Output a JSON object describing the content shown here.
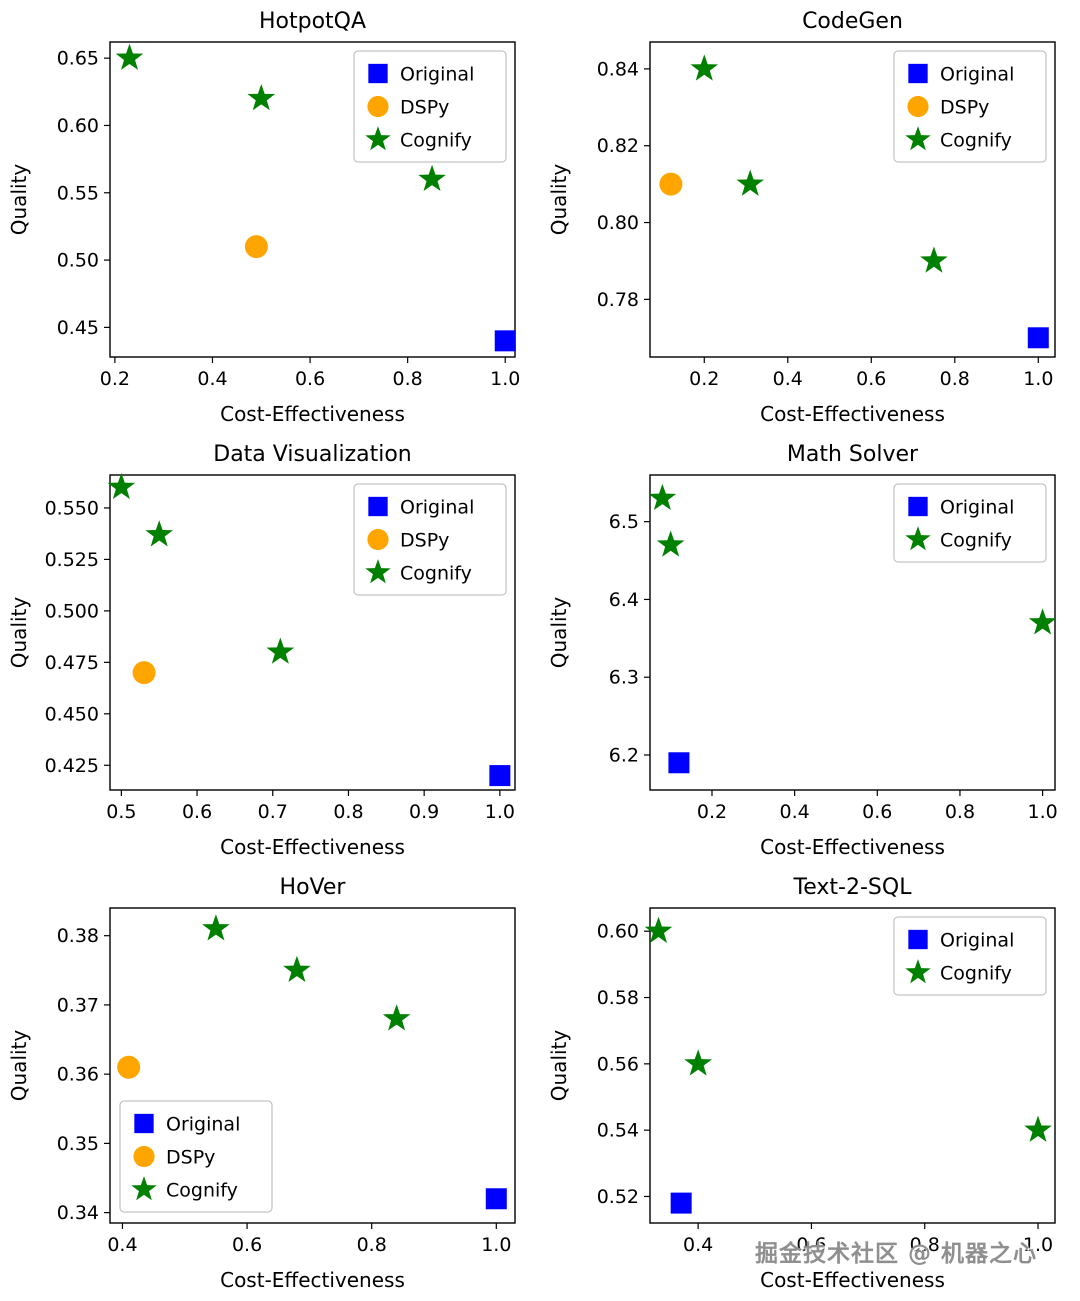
{
  "watermark": {
    "text": "掘金技术社区 @ 机器之心",
    "color": "#8f8f8f"
  },
  "colors": {
    "original": "#0000ff",
    "dspy": "#ffa500",
    "cognify": "#008000",
    "spine": "#000000",
    "legend_border": "#b5b5b5"
  },
  "chart_data": [
    {
      "id": "hotpotqa",
      "type": "scatter",
      "title": "HotpotQA",
      "xlabel": "Cost-Effectiveness",
      "ylabel": "Quality",
      "xlim": [
        0.19,
        1.02
      ],
      "ylim": [
        0.428,
        0.662
      ],
      "xticks": [
        0.2,
        0.4,
        0.6,
        0.8,
        1.0
      ],
      "xtick_labels": [
        "0.2",
        "0.4",
        "0.6",
        "0.8",
        "1.0"
      ],
      "yticks": [
        0.45,
        0.5,
        0.55,
        0.6,
        0.65
      ],
      "ytick_labels": [
        "0.45",
        "0.50",
        "0.55",
        "0.60",
        "0.65"
      ],
      "grid": false,
      "legend_pos": "top-right",
      "series": [
        {
          "name": "Original",
          "marker": "square",
          "color": "#0000ff",
          "points": [
            [
              1.0,
              0.44
            ]
          ]
        },
        {
          "name": "DSPy",
          "marker": "circle",
          "color": "#ffa500",
          "points": [
            [
              0.49,
              0.51
            ]
          ]
        },
        {
          "name": "Cognify",
          "marker": "star",
          "color": "#008000",
          "points": [
            [
              0.23,
              0.65
            ],
            [
              0.5,
              0.62
            ],
            [
              0.85,
              0.56
            ]
          ]
        }
      ]
    },
    {
      "id": "codegen",
      "type": "scatter",
      "title": "CodeGen",
      "xlabel": "Cost-Effectiveness",
      "ylabel": "Quality",
      "xlim": [
        0.07,
        1.04
      ],
      "ylim": [
        0.765,
        0.847
      ],
      "xticks": [
        0.2,
        0.4,
        0.6,
        0.8,
        1.0
      ],
      "xtick_labels": [
        "0.2",
        "0.4",
        "0.6",
        "0.8",
        "1.0"
      ],
      "yticks": [
        0.78,
        0.8,
        0.82,
        0.84
      ],
      "ytick_labels": [
        "0.78",
        "0.80",
        "0.82",
        "0.84"
      ],
      "grid": false,
      "legend_pos": "top-right",
      "series": [
        {
          "name": "Original",
          "marker": "square",
          "color": "#0000ff",
          "points": [
            [
              1.0,
              0.77
            ]
          ]
        },
        {
          "name": "DSPy",
          "marker": "circle",
          "color": "#ffa500",
          "points": [
            [
              0.12,
              0.81
            ]
          ]
        },
        {
          "name": "Cognify",
          "marker": "star",
          "color": "#008000",
          "points": [
            [
              0.2,
              0.84
            ],
            [
              0.31,
              0.81
            ],
            [
              0.75,
              0.79
            ]
          ]
        }
      ]
    },
    {
      "id": "data-visualization",
      "type": "scatter",
      "title": "Data Visualization",
      "xlabel": "Cost-Effectiveness",
      "ylabel": "Quality",
      "xlim": [
        0.485,
        1.02
      ],
      "ylim": [
        0.413,
        0.566
      ],
      "xticks": [
        0.5,
        0.6,
        0.7,
        0.8,
        0.9,
        1.0
      ],
      "xtick_labels": [
        "0.5",
        "0.6",
        "0.7",
        "0.8",
        "0.9",
        "1.0"
      ],
      "yticks": [
        0.425,
        0.45,
        0.475,
        0.5,
        0.525,
        0.55
      ],
      "ytick_labels": [
        "0.425",
        "0.450",
        "0.475",
        "0.500",
        "0.525",
        "0.550"
      ],
      "grid": false,
      "legend_pos": "top-right",
      "series": [
        {
          "name": "Original",
          "marker": "square",
          "color": "#0000ff",
          "points": [
            [
              1.0,
              0.42
            ]
          ]
        },
        {
          "name": "DSPy",
          "marker": "circle",
          "color": "#ffa500",
          "points": [
            [
              0.53,
              0.47
            ]
          ]
        },
        {
          "name": "Cognify",
          "marker": "star",
          "color": "#008000",
          "points": [
            [
              0.5,
              0.56
            ],
            [
              0.55,
              0.537
            ],
            [
              0.71,
              0.48
            ]
          ]
        }
      ]
    },
    {
      "id": "math-solver",
      "type": "scatter",
      "title": "Math Solver",
      "xlabel": "Cost-Effectiveness",
      "ylabel": "Quality",
      "xlim": [
        0.05,
        1.03
      ],
      "ylim": [
        6.155,
        6.56
      ],
      "xticks": [
        0.2,
        0.4,
        0.6,
        0.8,
        1.0
      ],
      "xtick_labels": [
        "0.2",
        "0.4",
        "0.6",
        "0.8",
        "1.0"
      ],
      "yticks": [
        6.2,
        6.3,
        6.4,
        6.5
      ],
      "ytick_labels": [
        "6.2",
        "6.3",
        "6.4",
        "6.5"
      ],
      "grid": false,
      "legend_pos": "top-right",
      "series": [
        {
          "name": "Original",
          "marker": "square",
          "color": "#0000ff",
          "points": [
            [
              0.12,
              6.19
            ]
          ]
        },
        {
          "name": "Cognify",
          "marker": "star",
          "color": "#008000",
          "points": [
            [
              0.08,
              6.53
            ],
            [
              0.1,
              6.47
            ],
            [
              1.0,
              6.37
            ]
          ]
        }
      ]
    },
    {
      "id": "hover",
      "type": "scatter",
      "title": "HoVer",
      "xlabel": "Cost-Effectiveness",
      "ylabel": "Quality",
      "xlim": [
        0.38,
        1.03
      ],
      "ylim": [
        0.3385,
        0.384
      ],
      "xticks": [
        0.4,
        0.6,
        0.8,
        1.0
      ],
      "xtick_labels": [
        "0.4",
        "0.6",
        "0.8",
        "1.0"
      ],
      "yticks": [
        0.34,
        0.35,
        0.36,
        0.37,
        0.38
      ],
      "ytick_labels": [
        "0.34",
        "0.35",
        "0.36",
        "0.37",
        "0.38"
      ],
      "grid": false,
      "legend_pos": "bottom-left",
      "series": [
        {
          "name": "Original",
          "marker": "square",
          "color": "#0000ff",
          "points": [
            [
              1.0,
              0.342
            ]
          ]
        },
        {
          "name": "DSPy",
          "marker": "circle",
          "color": "#ffa500",
          "points": [
            [
              0.41,
              0.361
            ]
          ]
        },
        {
          "name": "Cognify",
          "marker": "star",
          "color": "#008000",
          "points": [
            [
              0.55,
              0.381
            ],
            [
              0.68,
              0.375
            ],
            [
              0.84,
              0.368
            ]
          ]
        }
      ]
    },
    {
      "id": "text-2-sql",
      "type": "scatter",
      "title": "Text-2-SQL",
      "xlabel": "Cost-Effectiveness",
      "ylabel": "Quality",
      "xlim": [
        0.315,
        1.03
      ],
      "ylim": [
        0.512,
        0.607
      ],
      "xticks": [
        0.4,
        0.6,
        0.8,
        1.0
      ],
      "xtick_labels": [
        "0.4",
        "0.6",
        "0.8",
        "1.0"
      ],
      "yticks": [
        0.52,
        0.54,
        0.56,
        0.58,
        0.6
      ],
      "ytick_labels": [
        "0.52",
        "0.54",
        "0.56",
        "0.58",
        "0.60"
      ],
      "grid": false,
      "legend_pos": "top-right",
      "series": [
        {
          "name": "Original",
          "marker": "square",
          "color": "#0000ff",
          "points": [
            [
              0.37,
              0.518
            ]
          ]
        },
        {
          "name": "Cognify",
          "marker": "star",
          "color": "#008000",
          "points": [
            [
              0.33,
              0.6
            ],
            [
              0.4,
              0.56
            ],
            [
              1.0,
              0.54
            ]
          ]
        }
      ]
    }
  ]
}
